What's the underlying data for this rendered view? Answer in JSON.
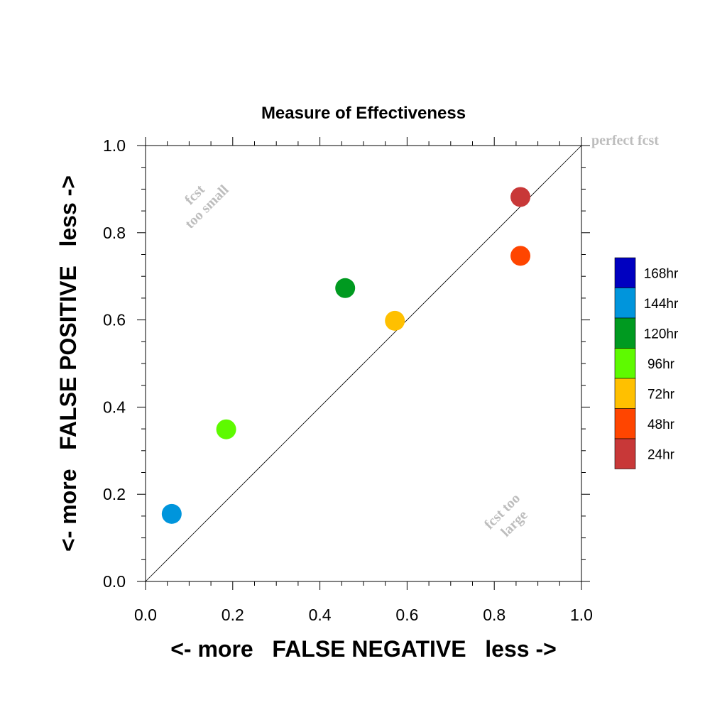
{
  "chart_data": {
    "type": "scatter",
    "title": "Measure of Effectiveness",
    "xlabel": "<- more   FALSE NEGATIVE   less ->",
    "ylabel": "<- more   FALSE POSITIVE   less ->",
    "xlim": [
      0,
      1
    ],
    "ylim": [
      0,
      1
    ],
    "x_ticks": [
      "0.0",
      "0.2",
      "0.4",
      "0.6",
      "0.8",
      "1.0"
    ],
    "y_ticks": [
      "0.0",
      "0.2",
      "0.4",
      "0.6",
      "0.8",
      "1.0"
    ],
    "grid": false,
    "diagonal_line": true,
    "annotations": {
      "perfect": "perfect fcst",
      "small_line1": "fcst",
      "small_line2": "too small",
      "large_line1": "fcst too",
      "large_line2": "large"
    },
    "legend_position": "right",
    "series": [
      {
        "name": "168hr",
        "color": "#0000c0",
        "x": null,
        "y": null
      },
      {
        "name": "144hr",
        "color": "#0095dc",
        "x": 0.06,
        "y": 0.155
      },
      {
        "name": "120hr",
        "color": "#009a20",
        "x": 0.458,
        "y": 0.673
      },
      {
        "name": "96hr",
        "color": "#5efa00",
        "x": 0.185,
        "y": 0.349
      },
      {
        "name": "72hr",
        "color": "#ffc000",
        "x": 0.572,
        "y": 0.598
      },
      {
        "name": "48hr",
        "color": "#ff4500",
        "x": 0.86,
        "y": 0.747
      },
      {
        "name": "24hr",
        "color": "#c83838",
        "x": 0.86,
        "y": 0.882
      }
    ]
  }
}
